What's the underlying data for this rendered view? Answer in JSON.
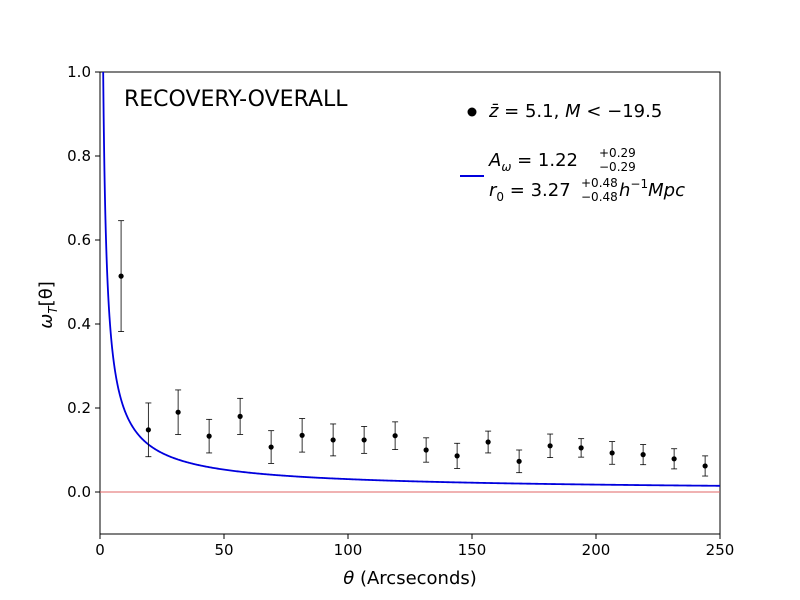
{
  "chart_data": {
    "type": "scatter",
    "annotation": "RECOVERY-OVERALL",
    "xlabel_symbol": "θ",
    "xlabel_unit": "(Arcseconds)",
    "ylabel_symbol": "ω",
    "ylabel_sub": "T",
    "ylabel_arg": "[θ]",
    "xlim": [
      0,
      250
    ],
    "ylim": [
      -0.1,
      1.0
    ],
    "xticks": [
      0,
      50,
      100,
      150,
      200,
      250
    ],
    "yticks": [
      0.0,
      0.2,
      0.4,
      0.6,
      0.8,
      1.0
    ],
    "ytick_labels": [
      "0.0",
      "0.2",
      "0.4",
      "0.6",
      "0.8",
      "1.0"
    ],
    "zero_line_color": "#e06666",
    "points": {
      "name": "z̄ = 5.1, M < −19.5",
      "legend": {
        "zbar": "z̄",
        "zval": " = 5.1,  ",
        "m": "M",
        "mval": " < −19.5"
      },
      "color": "#000000",
      "x": [
        8.5,
        19.5,
        31.5,
        44,
        56.5,
        69,
        81.5,
        94,
        106.5,
        119,
        131.5,
        144,
        156.5,
        169,
        181.5,
        194,
        206.5,
        219,
        231.5,
        244
      ],
      "y": [
        0.514,
        0.148,
        0.19,
        0.133,
        0.18,
        0.107,
        0.135,
        0.124,
        0.124,
        0.134,
        0.1,
        0.086,
        0.119,
        0.073,
        0.11,
        0.105,
        0.093,
        0.089,
        0.079,
        0.062
      ],
      "err": [
        0.132,
        0.064,
        0.053,
        0.04,
        0.043,
        0.039,
        0.04,
        0.038,
        0.032,
        0.033,
        0.029,
        0.03,
        0.026,
        0.027,
        0.028,
        0.022,
        0.027,
        0.024,
        0.024,
        0.024
      ]
    },
    "fit": {
      "color": "#0000dd",
      "A_label": "A",
      "A_sub": "ω",
      "A_val": " = 1.22",
      "A_sup": "+0.29",
      "A_lo": "−0.29",
      "r_label": "r",
      "r_sub": "0",
      "r_val": " = 3.27",
      "r_sup": "+0.48",
      "r_lo": "−0.48",
      "r_unit_h": "h",
      "r_unit_sup": "−1",
      "r_unit_rest": "Mpc",
      "amplitude": 1.22,
      "exponent": -0.8
    }
  }
}
